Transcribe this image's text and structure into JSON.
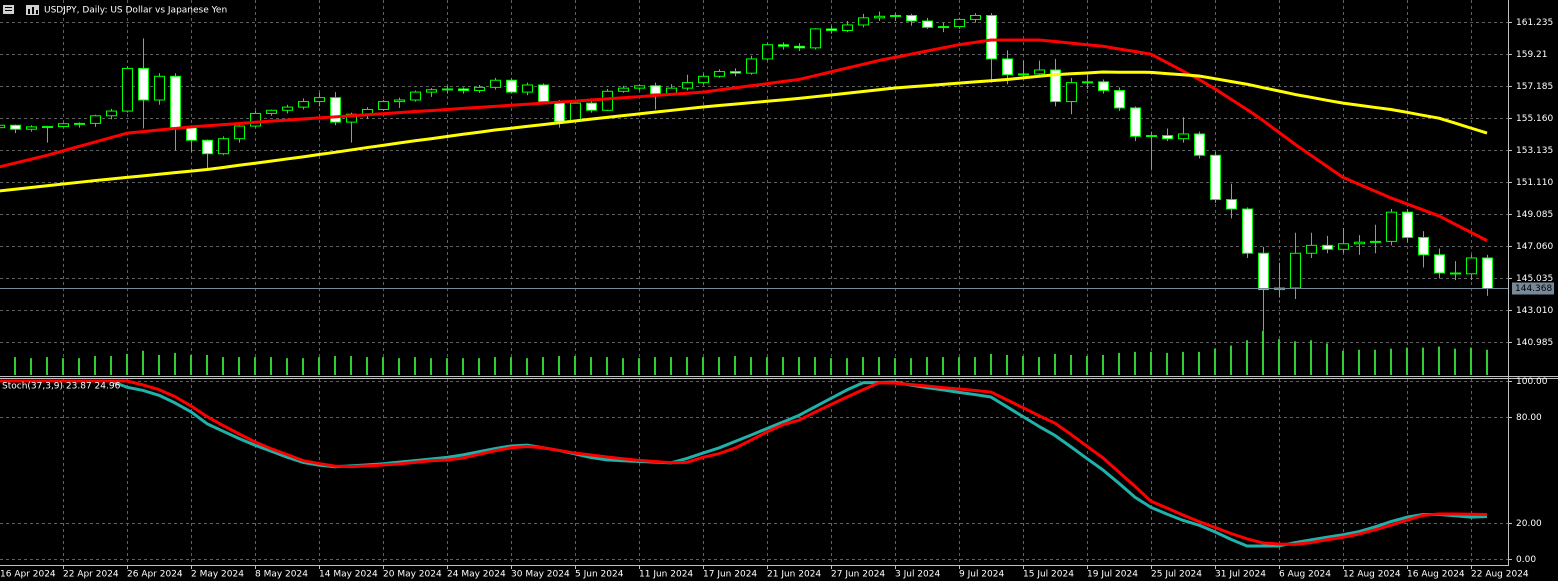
{
  "chart_data": [
    {
      "type": "candlestick",
      "title": "USDJPY, Daily: US Dollar vs Japanese Yen",
      "categories": [
        "16 Apr 2024",
        null,
        null,
        null,
        "22 Apr 2024",
        null,
        null,
        null,
        "26 Apr 2024",
        null,
        null,
        null,
        "2 May 2024",
        null,
        null,
        null,
        "8 May 2024",
        null,
        null,
        null,
        "14 May 2024",
        null,
        null,
        null,
        "20 May 2024",
        null,
        null,
        null,
        "24 May 2024",
        null,
        null,
        null,
        "30 May 2024",
        null,
        null,
        null,
        "5 Jun 2024",
        null,
        null,
        null,
        "11 Jun 2024",
        null,
        null,
        null,
        "17 Jun 2024",
        null,
        null,
        null,
        "21 Jun 2024",
        null,
        null,
        null,
        "27 Jun 2024",
        null,
        null,
        null,
        "3 Jul 2024",
        null,
        null,
        null,
        "9 Jul 2024",
        null,
        null,
        null,
        "15 Jul 2024",
        null,
        null,
        null,
        "19 Jul 2024",
        null,
        null,
        null,
        "25 Jul 2024",
        null,
        null,
        null,
        "31 Jul 2024",
        null,
        null,
        null,
        "6 Aug 2024",
        null,
        null,
        null,
        "12 Aug 2024",
        null,
        null,
        null,
        "16 Aug 2024",
        null,
        null,
        null,
        "22 Aug 2024",
        null
      ],
      "open": [
        154.55,
        154.7,
        154.45,
        154.6,
        154.62,
        154.8,
        154.82,
        155.3,
        155.6,
        158.3,
        156.3,
        157.8,
        154.55,
        153.75,
        152.9,
        153.85,
        154.65,
        155.45,
        155.65,
        155.85,
        156.2,
        156.45,
        154.9,
        155.4,
        155.7,
        156.2,
        156.3,
        156.8,
        156.95,
        157.0,
        156.9,
        157.1,
        157.55,
        156.8,
        157.25,
        156.2,
        154.95,
        156.1,
        155.65,
        156.85,
        157.05,
        157.2,
        156.7,
        157.05,
        157.4,
        157.8,
        158.1,
        158.0,
        158.9,
        159.8,
        159.7,
        159.6,
        160.8,
        160.7,
        161.05,
        161.5,
        161.6,
        161.65,
        161.3,
        160.9,
        160.95,
        161.4,
        161.65,
        158.9,
        157.9,
        157.95,
        158.2,
        156.2,
        157.4,
        157.45,
        156.9,
        155.8,
        154.0,
        154.05,
        153.85,
        154.15,
        152.8,
        150.0,
        149.4,
        146.6,
        144.3,
        144.4,
        146.6,
        147.1,
        146.85,
        147.2,
        147.3,
        147.35,
        149.2,
        147.6,
        146.5,
        145.35,
        145.3,
        146.3
      ],
      "high": [
        154.8,
        154.75,
        154.7,
        154.67,
        154.86,
        154.88,
        155.37,
        155.74,
        158.44,
        160.2,
        158.0,
        157.99,
        154.7,
        153.8,
        154.0,
        154.7,
        155.6,
        155.7,
        156.0,
        156.4,
        156.75,
        156.8,
        155.5,
        155.85,
        156.3,
        156.45,
        156.9,
        157.05,
        157.2,
        157.1,
        157.25,
        157.7,
        157.7,
        157.4,
        157.35,
        156.3,
        156.2,
        156.4,
        157.0,
        157.2,
        157.3,
        157.4,
        157.3,
        157.9,
        157.95,
        158.25,
        158.3,
        159.1,
        159.9,
        159.95,
        159.9,
        160.85,
        161.0,
        161.3,
        161.75,
        161.9,
        161.8,
        161.75,
        161.5,
        161.2,
        161.5,
        161.8,
        161.8,
        159.45,
        158.8,
        158.8,
        158.9,
        157.7,
        157.9,
        157.6,
        157.1,
        155.9,
        154.3,
        154.5,
        155.2,
        154.3,
        153.0,
        151.0,
        149.5,
        147.0,
        146.0,
        147.9,
        147.9,
        147.7,
        148.2,
        147.75,
        148.4,
        149.4,
        149.4,
        148.0,
        146.9,
        146.1,
        146.5,
        146.5
      ],
      "low": [
        154.3,
        154.2,
        154.3,
        153.6,
        154.55,
        154.55,
        154.6,
        155.08,
        155.5,
        154.5,
        156.0,
        153.1,
        153.0,
        151.9,
        152.8,
        153.6,
        154.55,
        155.3,
        155.45,
        155.7,
        155.9,
        154.7,
        153.6,
        155.1,
        155.6,
        155.8,
        156.2,
        156.5,
        156.7,
        156.7,
        156.75,
        156.95,
        156.7,
        156.6,
        156.1,
        154.55,
        154.8,
        155.5,
        155.6,
        156.75,
        156.9,
        155.7,
        156.6,
        156.9,
        157.3,
        157.7,
        157.8,
        157.9,
        158.8,
        159.5,
        159.4,
        159.5,
        160.5,
        160.6,
        160.9,
        161.3,
        161.3,
        161.0,
        160.8,
        160.6,
        160.8,
        161.2,
        157.4,
        157.3,
        157.6,
        157.8,
        155.9,
        155.4,
        157.0,
        156.7,
        155.6,
        153.7,
        151.9,
        153.7,
        153.6,
        152.6,
        149.8,
        148.8,
        146.3,
        141.7,
        143.8,
        143.7,
        146.3,
        146.6,
        146.6,
        146.5,
        146.6,
        147.1,
        147.3,
        145.7,
        145.0,
        144.9,
        144.9,
        143.9
      ],
      "close": [
        154.7,
        154.45,
        154.6,
        154.62,
        154.8,
        154.82,
        155.3,
        155.6,
        158.3,
        156.3,
        157.8,
        154.55,
        153.75,
        152.9,
        153.85,
        154.65,
        155.45,
        155.65,
        155.85,
        156.2,
        156.45,
        154.9,
        155.4,
        155.7,
        156.2,
        156.3,
        156.8,
        156.95,
        157.0,
        156.9,
        157.1,
        157.55,
        156.8,
        157.25,
        156.2,
        154.95,
        156.1,
        155.65,
        156.85,
        157.05,
        157.2,
        156.7,
        157.05,
        157.4,
        157.8,
        158.1,
        158.0,
        158.9,
        159.8,
        159.7,
        159.6,
        160.8,
        160.7,
        161.05,
        161.5,
        161.6,
        161.65,
        161.3,
        160.9,
        160.95,
        161.4,
        161.65,
        158.9,
        157.9,
        157.95,
        158.2,
        156.2,
        157.4,
        157.45,
        156.9,
        155.8,
        154.0,
        154.05,
        153.85,
        154.15,
        152.8,
        150.0,
        149.4,
        146.6,
        144.3,
        144.4,
        146.6,
        147.1,
        146.85,
        147.2,
        147.3,
        147.35,
        149.2,
        147.6,
        146.5,
        145.35,
        145.3,
        146.3,
        144.368
      ],
      "volume": [
        16,
        17,
        16,
        17,
        16,
        16,
        18,
        18,
        20,
        23,
        19,
        21,
        19,
        19,
        17,
        17,
        17,
        17,
        16,
        16,
        17,
        18,
        18,
        17,
        17,
        16,
        17,
        16,
        16,
        16,
        16,
        17,
        17,
        16,
        17,
        18,
        18,
        17,
        17,
        16,
        16,
        17,
        17,
        17,
        17,
        17,
        18,
        17,
        17,
        17,
        17,
        17,
        16,
        16,
        17,
        17,
        16,
        16,
        17,
        17,
        17,
        17,
        20,
        19,
        18,
        17,
        20,
        19,
        18,
        19,
        21,
        22,
        22,
        21,
        22,
        22,
        25,
        28,
        33,
        42,
        34,
        32,
        33,
        30,
        23,
        24,
        24,
        25,
        26,
        26,
        27,
        25,
        26,
        24
      ],
      "volume_lim": [
        0,
        38
      ],
      "volume_color": "#32cd32",
      "up_color": "#000000",
      "down_color": "#ffffff",
      "outline_color": "#00ff00",
      "series": [
        {
          "color": "#ff0000",
          "values": [
            152.06,
            152.31,
            152.55,
            152.8,
            153.08,
            153.36,
            153.64,
            153.92,
            154.2,
            154.3,
            154.4,
            154.5,
            154.6,
            154.67,
            154.74,
            154.81,
            154.89,
            154.96,
            155.03,
            155.1,
            155.17,
            155.23,
            155.3,
            155.37,
            155.43,
            155.5,
            155.57,
            155.63,
            155.7,
            155.77,
            155.83,
            155.9,
            155.97,
            156.03,
            156.1,
            156.17,
            156.23,
            156.3,
            156.37,
            156.44,
            156.51,
            156.59,
            156.66,
            156.73,
            156.8,
            156.93,
            157.07,
            157.2,
            157.33,
            157.47,
            157.6,
            157.84,
            158.08,
            158.32,
            158.56,
            158.8,
            159.0,
            159.2,
            159.4,
            159.6,
            159.8,
            159.95,
            160.1,
            160.1,
            160.1,
            160.1,
            160.0,
            159.9,
            159.8,
            159.7,
            159.53,
            159.37,
            159.2,
            158.67,
            158.13,
            157.6,
            157.0,
            156.35,
            155.7,
            155.0,
            154.25,
            153.5,
            152.8,
            152.1,
            151.4,
            150.97,
            150.53,
            150.1,
            149.72,
            149.34,
            148.96,
            148.44,
            147.92,
            147.4
          ]
        },
        {
          "color": "#ffff00",
          "values": [
            150.54,
            150.65,
            150.76,
            150.87,
            150.98,
            151.09,
            151.2,
            151.3,
            151.4,
            151.5,
            151.6,
            151.7,
            151.8,
            151.9,
            152.03,
            152.17,
            152.3,
            152.43,
            152.57,
            152.7,
            152.85,
            152.99,
            153.14,
            153.29,
            153.43,
            153.58,
            153.72,
            153.85,
            153.99,
            154.13,
            154.26,
            154.4,
            154.51,
            154.63,
            154.74,
            154.86,
            154.97,
            155.09,
            155.2,
            155.31,
            155.42,
            155.53,
            155.64,
            155.75,
            155.86,
            155.95,
            156.04,
            156.13,
            156.22,
            156.31,
            156.4,
            156.51,
            156.62,
            156.73,
            156.84,
            156.95,
            157.06,
            157.14,
            157.21,
            157.29,
            157.37,
            157.45,
            157.52,
            157.6,
            157.7,
            157.8,
            157.9,
            157.96,
            158.01,
            158.07,
            158.06,
            158.06,
            158.05,
            157.97,
            157.9,
            157.82,
            157.65,
            157.47,
            157.3,
            157.08,
            156.87,
            156.65,
            156.47,
            156.28,
            156.1,
            155.97,
            155.83,
            155.7,
            155.52,
            155.33,
            155.15,
            154.84,
            154.52,
            154.21
          ]
        }
      ],
      "ylim": [
        138.83,
        162.63
      ],
      "yticks": [
        161.235,
        159.21,
        157.185,
        {
          "value": 155.16,
          "label": "155.160"
        },
        153.135,
        {
          "value": 151.11,
          "label": "151.110"
        },
        149.085,
        {
          "value": 147.06,
          "label": "147.060"
        },
        145.035,
        {
          "value": 143.01,
          "label": "143.010"
        },
        140.985
      ],
      "current_price": 144.368,
      "grid": true
    },
    {
      "type": "line",
      "title": "Stoch(37,3,9) 23.87 24.96",
      "series": [
        {
          "color": "#20b2aa",
          "values": [
            100,
            100,
            100,
            100,
            100,
            100,
            100,
            100,
            96.5,
            94.7,
            92,
            87.7,
            82.7,
            76,
            71.8,
            67.7,
            63.9,
            60.6,
            57.2,
            54.3,
            52.7,
            51.8,
            52.3,
            52.9,
            53.5,
            54.4,
            55.3,
            56.2,
            57.1,
            58.5,
            60.3,
            62,
            63.5,
            64,
            62.5,
            61,
            59,
            57,
            55.7,
            55.2,
            54.8,
            54.4,
            54,
            56.5,
            59.5,
            62.4,
            66,
            69.6,
            73.3,
            77,
            80.7,
            85.5,
            90.3,
            95,
            99,
            99.2,
            99.4,
            97.7,
            96.3,
            95,
            93.6,
            92.4,
            91,
            85.5,
            80,
            74.5,
            69.4,
            63,
            56.4,
            50,
            42.5,
            34.7,
            29,
            25.2,
            21.7,
            19,
            15.2,
            11,
            7.3,
            7.3,
            7.3,
            9.2,
            10.7,
            12.2,
            13.6,
            15.4,
            18,
            21,
            23.5,
            25,
            25,
            24.3,
            23.5,
            23.87
          ]
        },
        {
          "color": "#ff0000",
          "values": [
            100,
            100,
            100,
            100,
            100,
            100,
            100,
            100,
            100,
            97.8,
            95.2,
            91.2,
            86,
            80,
            75,
            70.3,
            65.8,
            62,
            58.7,
            55.3,
            53.6,
            52.2,
            51.9,
            52.3,
            52.8,
            53.4,
            54.3,
            55.2,
            55.6,
            56.7,
            58.8,
            60.8,
            62.5,
            63.2,
            62.5,
            61,
            59.5,
            58.4,
            57.3,
            56.3,
            55.4,
            54.8,
            54.1,
            54.3,
            57.1,
            59.2,
            62.3,
            66.8,
            71.4,
            75.5,
            78,
            82.5,
            86.8,
            91,
            95.1,
            99,
            98.8,
            98,
            97.2,
            96.3,
            95.5,
            94.7,
            93.8,
            89.4,
            85,
            80.5,
            76.3,
            70,
            63.3,
            56.8,
            48.7,
            40.8,
            32.4,
            28.6,
            24.7,
            21,
            17.7,
            14.3,
            11.3,
            9,
            8.4,
            8.2,
            9.2,
            10.8,
            12.2,
            14,
            16.4,
            19,
            21.8,
            24.5,
            25.3,
            25.3,
            25.1,
            24.96
          ]
        }
      ],
      "ylim": [
        -3.4,
        101.7
      ],
      "yticks": [
        {
          "value": 100,
          "label": "100.00"
        },
        {
          "value": 80,
          "label": "80.00"
        },
        {
          "value": 20,
          "label": "20.00"
        },
        {
          "value": 0,
          "label": "0.00"
        }
      ],
      "grid": true
    }
  ]
}
